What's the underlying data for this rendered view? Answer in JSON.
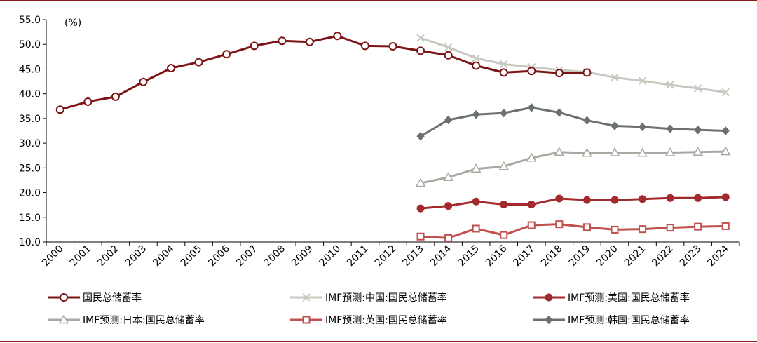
{
  "chart_data": {
    "type": "line",
    "unit_label": "(%)",
    "ylim": [
      10,
      55
    ],
    "yticks": [
      "10.0",
      "15.0",
      "20.0",
      "25.0",
      "30.0",
      "35.0",
      "40.0",
      "45.0",
      "50.0",
      "55.0"
    ],
    "x": [
      "2000",
      "2001",
      "2002",
      "2003",
      "2004",
      "2005",
      "2006",
      "2007",
      "2008",
      "2009",
      "2010",
      "2011",
      "2012",
      "2013",
      "2014",
      "2015",
      "2016",
      "2017",
      "2018",
      "2019",
      "2020",
      "2021",
      "2022",
      "2023",
      "2024"
    ],
    "grid": false,
    "legend_position": "bottom",
    "series": [
      {
        "name": "国民总储蓄率",
        "color": "#7b1416",
        "marker": "circle-open",
        "values": [
          36.8,
          38.4,
          39.4,
          42.4,
          45.2,
          46.4,
          48.0,
          49.7,
          50.7,
          50.5,
          51.7,
          49.7,
          49.6,
          48.7,
          47.8,
          45.7,
          44.3,
          44.6,
          44.2,
          44.3,
          null,
          null,
          null,
          null,
          null
        ]
      },
      {
        "name": "IMF预测:中国:国民总储蓄率",
        "color": "#c8c8c0",
        "marker": "x",
        "values": [
          null,
          null,
          null,
          null,
          null,
          null,
          null,
          null,
          null,
          null,
          null,
          null,
          null,
          51.3,
          49.4,
          47.2,
          46.0,
          45.4,
          44.8,
          44.4,
          43.3,
          42.6,
          41.8,
          41.1,
          40.3
        ]
      },
      {
        "name": "IMF预测:美国:国民总储蓄率",
        "color": "#a32a2c",
        "marker": "circle-filled",
        "values": [
          null,
          null,
          null,
          null,
          null,
          null,
          null,
          null,
          null,
          null,
          null,
          null,
          null,
          16.8,
          17.3,
          18.2,
          17.6,
          17.6,
          18.8,
          18.5,
          18.5,
          18.7,
          18.9,
          18.9,
          19.1
        ]
      },
      {
        "name": "IMF预测:日本:国民总储蓄率",
        "color": "#a9a9a2",
        "marker": "triangle-open",
        "values": [
          null,
          null,
          null,
          null,
          null,
          null,
          null,
          null,
          null,
          null,
          null,
          null,
          null,
          21.9,
          23.1,
          24.8,
          25.3,
          27.0,
          28.2,
          28.0,
          28.1,
          28.0,
          28.1,
          28.2,
          28.3
        ]
      },
      {
        "name": "IMF预测:英国:国民总储蓄率",
        "color": "#c0504d",
        "marker": "square-open",
        "values": [
          null,
          null,
          null,
          null,
          null,
          null,
          null,
          null,
          null,
          null,
          null,
          null,
          null,
          11.1,
          10.8,
          12.7,
          11.4,
          13.4,
          13.6,
          13.0,
          12.5,
          12.6,
          12.9,
          13.1,
          13.2
        ]
      },
      {
        "name": "IMF预测:韩国:国民总储蓄率",
        "color": "#6b716d",
        "marker": "diamond-filled",
        "values": [
          null,
          null,
          null,
          null,
          null,
          null,
          null,
          null,
          null,
          null,
          null,
          null,
          null,
          31.4,
          34.7,
          35.8,
          36.1,
          37.2,
          36.2,
          34.6,
          33.5,
          33.3,
          32.9,
          32.7,
          32.5
        ]
      }
    ]
  }
}
